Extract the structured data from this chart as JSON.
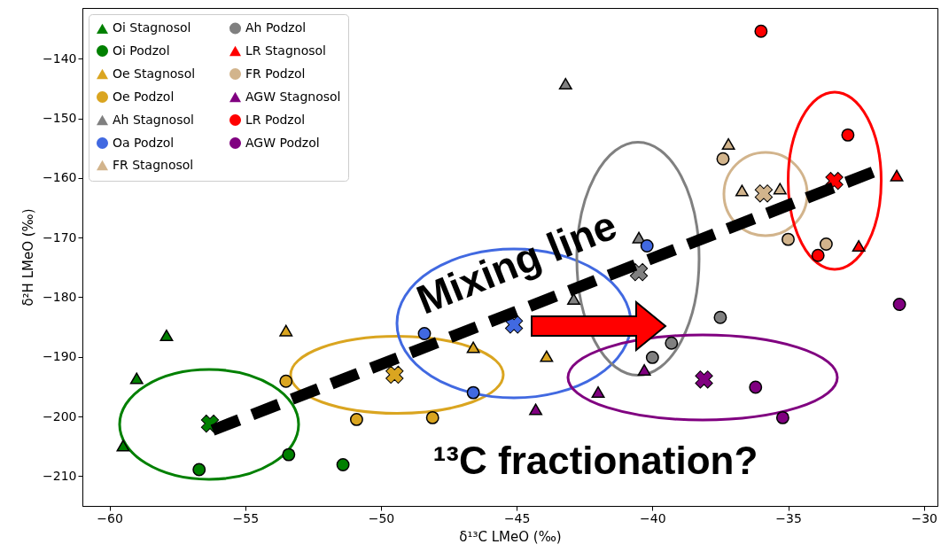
{
  "chart_data": {
    "type": "scatter",
    "xlabel": "δ¹³C LMeO (‰)",
    "ylabel": "δ²H LMeO (‰)",
    "xlim": [
      -61,
      -29.5
    ],
    "ylim": [
      -215,
      -131.5
    ],
    "xticks": [
      -60,
      -55,
      -50,
      -45,
      -40,
      -35,
      -30
    ],
    "yticks": [
      -210,
      -200,
      -190,
      -180,
      -170,
      -160,
      -150,
      -140
    ],
    "legend": "top left",
    "annotations": [
      "Mixing line",
      "¹³C fractionation?"
    ],
    "series": [
      {
        "name": "Oi Stagnosol",
        "marker": "triangle",
        "color": "#008000",
        "x": [
          -59.0,
          -57.9,
          -59.5
        ],
        "values": [
          -193.6,
          -186.4,
          -204.9
        ]
      },
      {
        "name": "Oi Podzol",
        "marker": "circle",
        "color": "#008000",
        "x": [
          -56.7,
          -53.4,
          -51.4
        ],
        "values": [
          -208.9,
          -206.4,
          -208.1
        ]
      },
      {
        "name": "Oe Stagnosol",
        "marker": "triangle",
        "color": "#daa520",
        "x": [
          -53.5,
          -46.6,
          -43.9
        ],
        "values": [
          -185.6,
          -188.4,
          -189.9
        ]
      },
      {
        "name": "Oe Podzol",
        "marker": "circle",
        "color": "#daa520",
        "x": [
          -53.5,
          -50.9,
          -48.1
        ],
        "values": [
          -194.1,
          -200.5,
          -200.2
        ]
      },
      {
        "name": "Ah Stagnosol",
        "marker": "triangle",
        "color": "#808080",
        "x": [
          -43.2,
          -40.5,
          -42.9
        ],
        "values": [
          -144.2,
          -170.0,
          -180.3
        ]
      },
      {
        "name": "Oa Podzol",
        "marker": "circle",
        "color": "#4169e1",
        "x": [
          -48.4,
          -46.6,
          -40.2
        ],
        "values": [
          -186.1,
          -196.0,
          -171.4
        ]
      },
      {
        "name": "FR Stagnosol",
        "marker": "triangle",
        "color": "#d2b48c",
        "x": [
          -37.2,
          -36.7,
          -35.3
        ],
        "values": [
          -154.3,
          -162.1,
          -161.8
        ]
      },
      {
        "name": "Ah Podzol",
        "marker": "circle",
        "color": "#808080",
        "x": [
          -37.5,
          -39.3,
          -40.0
        ],
        "values": [
          -183.4,
          -187.7,
          -190.1
        ]
      },
      {
        "name": "LR Stagnosol",
        "marker": "triangle",
        "color": "#ff0000",
        "x": [
          -31.0,
          -32.4
        ],
        "values": [
          -159.6,
          -171.4
        ]
      },
      {
        "name": "FR Podzol",
        "marker": "circle",
        "color": "#d2b48c",
        "x": [
          -37.4,
          -35.0,
          -33.6
        ],
        "values": [
          -156.8,
          -170.3,
          -171.1
        ]
      },
      {
        "name": "AGW Stagnosol",
        "marker": "triangle",
        "color": "#800080",
        "x": [
          -44.3,
          -42.0,
          -40.3
        ],
        "values": [
          -198.8,
          -195.9,
          -192.2
        ]
      },
      {
        "name": "LR Podzol",
        "marker": "circle",
        "color": "#ff0000",
        "x": [
          -36.0,
          -32.8,
          -33.9
        ],
        "values": [
          -135.4,
          -152.8,
          -173.0
        ]
      },
      {
        "name": "AGW Podzol",
        "marker": "circle",
        "color": "#800080",
        "x": [
          -30.9,
          -36.2,
          -35.2
        ],
        "values": [
          -181.2,
          -195.1,
          -200.2
        ]
      },
      {
        "marker": "cross",
        "colors": [
          "#008000",
          "#daa520",
          "#4169e1",
          "#808080",
          "#d2b48c",
          "#ff0000",
          "#800080"
        ],
        "x": [
          -56.3,
          -49.5,
          -45.1,
          -40.5,
          -35.9,
          -33.3,
          -38.1
        ],
        "values": [
          -201.2,
          -193.0,
          -184.6,
          -175.8,
          -162.6,
          -160.5,
          -193.8
        ]
      },
      {
        "type": "line",
        "color": "#000000",
        "line_style": "dashed",
        "x": [
          -56.2,
          -31.7
        ],
        "values": [
          -202.3,
          -158.7
        ]
      }
    ]
  }
}
